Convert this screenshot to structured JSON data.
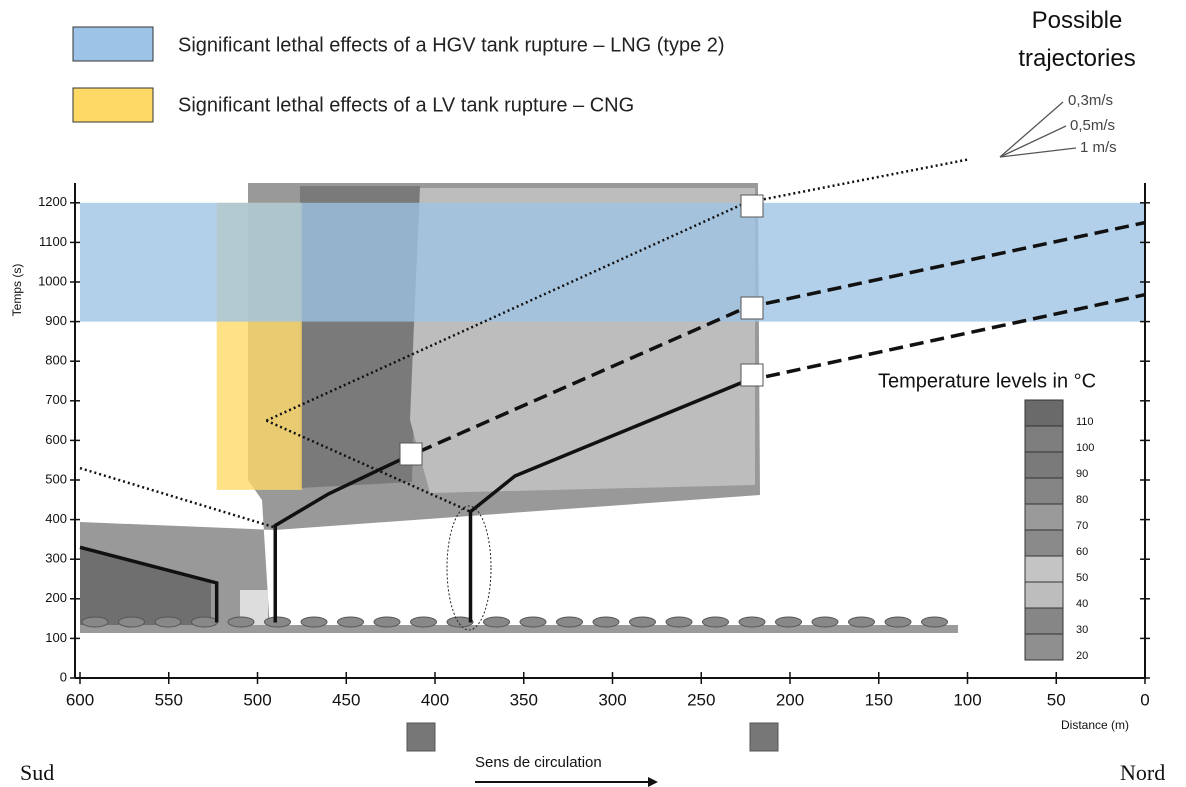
{
  "chart_data": {
    "type": "trajectory",
    "bands": [
      {
        "name": "Significant lethal effects of a HGV tank rupture – LNG (type 2)",
        "color": "#9dc3e6",
        "x": [
          600,
          0
        ],
        "y": [
          900,
          1200
        ]
      },
      {
        "name": "Significant lethal effects of a LV tank rupture – CNG",
        "color": "#ffd966",
        "x": [
          523,
          475
        ],
        "y": [
          475,
          1200
        ]
      }
    ],
    "lines": [
      {
        "style": "solid",
        "x": [
          600,
          523,
          523
        ],
        "values": [
          330,
          240,
          140
        ]
      },
      {
        "style": "solid",
        "x": [
          490,
          490,
          460,
          420
        ],
        "values": [
          140,
          385,
          465,
          550
        ]
      },
      {
        "style": "solid",
        "x": [
          380,
          380,
          355,
          225
        ],
        "values": [
          140,
          420,
          510,
          750
        ]
      },
      {
        "style": "dashed",
        "x": [
          420,
          225,
          0
        ],
        "values": [
          550,
          935,
          1150
        ]
      },
      {
        "style": "dashed",
        "x": [
          225,
          0
        ],
        "values": [
          750,
          968
        ]
      },
      {
        "style": "dotted",
        "x": [
          600,
          490
        ],
        "values": [
          530,
          380
        ]
      },
      {
        "style": "dotted",
        "x": [
          495,
          380
        ],
        "values": [
          650,
          420
        ]
      },
      {
        "style": "dotted",
        "x": [
          495,
          225,
          99
        ],
        "values": [
          650,
          1200,
          1310
        ]
      }
    ],
    "xlim": [
      600,
      0
    ],
    "xticks": [
      600,
      550,
      500,
      450,
      400,
      350,
      300,
      250,
      200,
      150,
      100,
      50,
      0
    ],
    "ylim": [
      0,
      1250
    ],
    "yticks": [
      0,
      100,
      200,
      300,
      400,
      500,
      600,
      700,
      800,
      900,
      1000,
      1100,
      1200
    ],
    "xlabel": "Distance (m)",
    "ylabel": "Temps (s)",
    "trajectories_title": "Possible trajectories",
    "speeds": [
      "0,3m/s",
      "0,5m/s",
      "1 m/s"
    ],
    "south": "Sud",
    "north": "Nord",
    "direction": "Sens de circulation",
    "colorbar": {
      "title": "Temperature levels in °C",
      "levels": [
        110,
        100,
        90,
        80,
        70,
        60,
        50,
        40,
        30,
        20
      ],
      "colors": [
        "#6a6a6a",
        "#7e7e7e",
        "#7a7a7a",
        "#858585",
        "#9a9a9a",
        "#8a8a8a",
        "#c4c4c4",
        "#bdbdbd",
        "#868686",
        "#8f8f8f"
      ]
    }
  }
}
